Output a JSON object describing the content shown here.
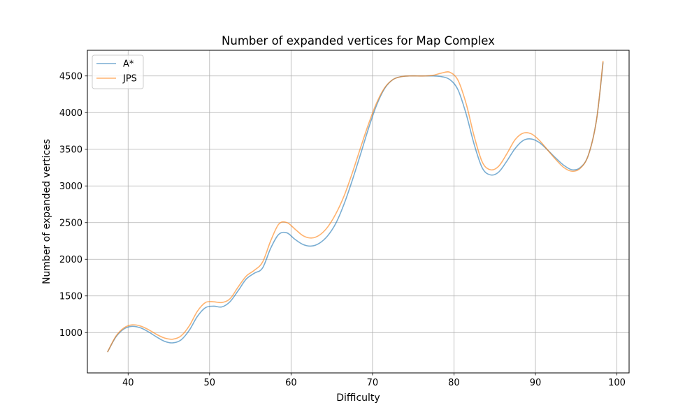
{
  "chart_data": {
    "type": "line",
    "title": "Number of expanded vertices for Map Complex",
    "xlabel": "Difficulty",
    "ylabel": "Number of expanded vertices",
    "xlim": [
      35,
      101.5
    ],
    "ylim": [
      450,
      4850
    ],
    "xticks": [
      40,
      50,
      60,
      70,
      80,
      90,
      100
    ],
    "yticks": [
      1000,
      1500,
      2000,
      2500,
      3000,
      3500,
      4000,
      4500
    ],
    "grid": true,
    "legend_position": "top-left",
    "series": [
      {
        "name": "A*",
        "color": "#1f77b4",
        "x": [
          37.5,
          38.5,
          39.5,
          40.5,
          41.5,
          42.5,
          43.5,
          44.5,
          45.5,
          46.5,
          47.5,
          48.5,
          49.5,
          50.5,
          51.5,
          52.5,
          53.5,
          54.5,
          55.5,
          56.5,
          57.5,
          58.5,
          59.5,
          60.5,
          61.5,
          62.5,
          63.5,
          64.5,
          65.5,
          66.5,
          67.5,
          68.5,
          69.5,
          70.5,
          71.5,
          72.5,
          73.5,
          74.5,
          75.5,
          76.5,
          77.5,
          78.5,
          79.5,
          80.5,
          81.5,
          82.5,
          83.5,
          84.5,
          85.5,
          86.5,
          87.5,
          88.5,
          89.5,
          90.5,
          91.5,
          92.5,
          93.5,
          94.5,
          95.5,
          96.5,
          97.5,
          98.3
        ],
        "y": [
          740,
          940,
          1050,
          1085,
          1065,
          1010,
          940,
          880,
          860,
          900,
          1030,
          1220,
          1340,
          1360,
          1350,
          1420,
          1570,
          1730,
          1810,
          1880,
          2150,
          2340,
          2360,
          2270,
          2200,
          2180,
          2220,
          2320,
          2490,
          2750,
          3070,
          3420,
          3780,
          4100,
          4330,
          4450,
          4490,
          4500,
          4500,
          4500,
          4500,
          4490,
          4450,
          4310,
          3980,
          3560,
          3240,
          3150,
          3190,
          3340,
          3510,
          3620,
          3640,
          3590,
          3490,
          3380,
          3280,
          3220,
          3250,
          3420,
          3900,
          4680
        ]
      },
      {
        "name": "JPS",
        "color": "#ff7f0e",
        "x": [
          37.5,
          38.5,
          39.5,
          40.5,
          41.5,
          42.5,
          43.5,
          44.5,
          45.5,
          46.5,
          47.5,
          48.5,
          49.5,
          50.5,
          51.5,
          52.5,
          53.5,
          54.5,
          55.5,
          56.5,
          57.5,
          58.5,
          59.5,
          60.5,
          61.5,
          62.5,
          63.5,
          64.5,
          65.5,
          66.5,
          67.5,
          68.5,
          69.5,
          70.5,
          71.5,
          72.5,
          73.5,
          74.5,
          75.5,
          76.5,
          77.5,
          78.5,
          79.5,
          80.5,
          81.5,
          82.5,
          83.5,
          84.5,
          85.5,
          86.5,
          87.5,
          88.5,
          89.5,
          90.5,
          91.5,
          92.5,
          93.5,
          94.5,
          95.5,
          96.5,
          97.5,
          98.3
        ],
        "y": [
          740,
          950,
          1065,
          1105,
          1090,
          1040,
          975,
          925,
          910,
          955,
          1090,
          1290,
          1410,
          1420,
          1410,
          1460,
          1620,
          1770,
          1850,
          1960,
          2250,
          2480,
          2500,
          2410,
          2320,
          2290,
          2330,
          2440,
          2620,
          2860,
          3170,
          3510,
          3840,
          4130,
          4340,
          4450,
          4490,
          4500,
          4500,
          4500,
          4510,
          4540,
          4550,
          4440,
          4120,
          3670,
          3320,
          3220,
          3270,
          3440,
          3630,
          3720,
          3710,
          3620,
          3490,
          3360,
          3250,
          3200,
          3240,
          3420,
          3900,
          4700
        ]
      }
    ]
  }
}
